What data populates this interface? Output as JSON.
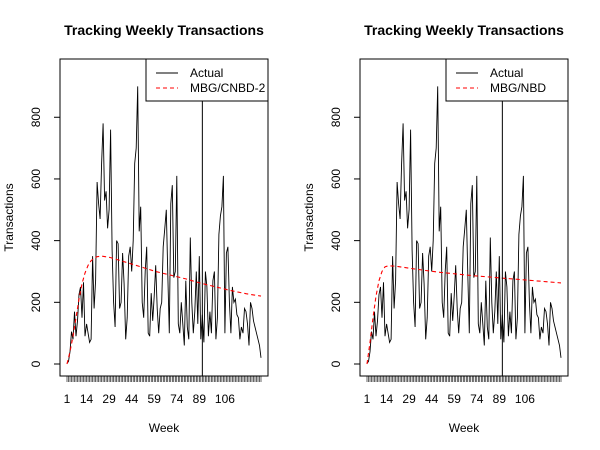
{
  "chart_data": [
    {
      "type": "line",
      "title": "Tracking Weekly Transactions",
      "xlabel": "Week",
      "ylabel": "Transactions",
      "xlim": [
        1,
        130
      ],
      "ylim": [
        0,
        950
      ],
      "x_ticks": [
        1,
        14,
        29,
        44,
        59,
        74,
        89,
        106
      ],
      "y_ticks": [
        0,
        200,
        400,
        600,
        800
      ],
      "calibration_week": 91,
      "legend_position": "top-right",
      "grid": false,
      "series": [
        {
          "name": "Actual",
          "color": "#000000",
          "style": "solid",
          "x": [
            1,
            2,
            3,
            4,
            5,
            6,
            7,
            8,
            9,
            10,
            11,
            12,
            13,
            14,
            15,
            16,
            17,
            18,
            19,
            20,
            21,
            22,
            23,
            24,
            25,
            26,
            27,
            28,
            29,
            30,
            31,
            32,
            33,
            34,
            35,
            36,
            37,
            38,
            39,
            40,
            41,
            42,
            43,
            44,
            45,
            46,
            47,
            48,
            49,
            50,
            51,
            52,
            53,
            54,
            55,
            56,
            57,
            58,
            59,
            60,
            61,
            62,
            63,
            64,
            65,
            66,
            67,
            68,
            69,
            70,
            71,
            72,
            73,
            74,
            75,
            76,
            77,
            78,
            79,
            80,
            81,
            82,
            83,
            84,
            85,
            86,
            87,
            88,
            89,
            90,
            91,
            92,
            93,
            94,
            95,
            96,
            97,
            98,
            99,
            100,
            101,
            102,
            103,
            104,
            105,
            106,
            107,
            108,
            109,
            110,
            111,
            112,
            113,
            114,
            115,
            116,
            117,
            118,
            119,
            120,
            121,
            122,
            123,
            124,
            125,
            126,
            127,
            128,
            129,
            130
          ],
          "y": [
            2,
            8,
            40,
            105,
            80,
            170,
            90,
            140,
            225,
            250,
            150,
            265,
            90,
            130,
            100,
            70,
            80,
            350,
            180,
            270,
            590,
            520,
            470,
            650,
            780,
            530,
            560,
            440,
            500,
            760,
            370,
            200,
            120,
            400,
            390,
            180,
            200,
            360,
            260,
            80,
            150,
            350,
            380,
            300,
            400,
            650,
            700,
            900,
            430,
            510,
            200,
            150,
            300,
            380,
            100,
            90,
            230,
            140,
            220,
            320,
            180,
            100,
            180,
            200,
            380,
            440,
            500,
            290,
            100,
            520,
            580,
            280,
            300,
            610,
            130,
            100,
            200,
            130,
            60,
            270,
            120,
            80,
            410,
            200,
            100,
            170,
            300,
            130,
            350,
            80,
            160,
            70,
            300,
            250,
            90,
            170,
            100,
            270,
            300,
            80,
            150,
            420,
            480,
            510,
            610,
            100,
            360,
            380,
            200,
            100,
            250,
            200,
            210,
            160,
            150,
            80,
            120,
            100,
            180,
            170,
            130,
            60,
            200,
            180,
            140,
            120,
            100,
            80,
            60,
            20
          ]
        },
        {
          "name": "MBG/CNBD-2",
          "color": "#ff0000",
          "style": "dashed",
          "x": [
            1,
            3,
            5,
            7,
            9,
            11,
            13,
            15,
            17,
            19,
            21,
            24,
            30,
            40,
            50,
            60,
            70,
            80,
            90,
            100,
            110,
            120,
            130
          ],
          "y": [
            0,
            40,
            90,
            150,
            210,
            260,
            295,
            320,
            335,
            343,
            348,
            350,
            345,
            330,
            315,
            300,
            288,
            276,
            262,
            250,
            238,
            228,
            220
          ]
        }
      ]
    },
    {
      "type": "line",
      "title": "Tracking Weekly Transactions",
      "xlabel": "Week",
      "ylabel": "Transactions",
      "xlim": [
        1,
        130
      ],
      "ylim": [
        0,
        950
      ],
      "x_ticks": [
        1,
        14,
        29,
        44,
        59,
        74,
        89,
        106
      ],
      "y_ticks": [
        0,
        200,
        400,
        600,
        800
      ],
      "calibration_week": 91,
      "legend_position": "top-right",
      "grid": false,
      "series": [
        {
          "name": "Actual",
          "color": "#000000",
          "style": "solid",
          "x": [
            1,
            2,
            3,
            4,
            5,
            6,
            7,
            8,
            9,
            10,
            11,
            12,
            13,
            14,
            15,
            16,
            17,
            18,
            19,
            20,
            21,
            22,
            23,
            24,
            25,
            26,
            27,
            28,
            29,
            30,
            31,
            32,
            33,
            34,
            35,
            36,
            37,
            38,
            39,
            40,
            41,
            42,
            43,
            44,
            45,
            46,
            47,
            48,
            49,
            50,
            51,
            52,
            53,
            54,
            55,
            56,
            57,
            58,
            59,
            60,
            61,
            62,
            63,
            64,
            65,
            66,
            67,
            68,
            69,
            70,
            71,
            72,
            73,
            74,
            75,
            76,
            77,
            78,
            79,
            80,
            81,
            82,
            83,
            84,
            85,
            86,
            87,
            88,
            89,
            90,
            91,
            92,
            93,
            94,
            95,
            96,
            97,
            98,
            99,
            100,
            101,
            102,
            103,
            104,
            105,
            106,
            107,
            108,
            109,
            110,
            111,
            112,
            113,
            114,
            115,
            116,
            117,
            118,
            119,
            120,
            121,
            122,
            123,
            124,
            125,
            126,
            127,
            128,
            129,
            130
          ],
          "y": [
            2,
            8,
            40,
            105,
            80,
            170,
            90,
            140,
            225,
            250,
            150,
            265,
            90,
            130,
            100,
            70,
            80,
            350,
            180,
            270,
            590,
            520,
            470,
            650,
            780,
            530,
            560,
            440,
            500,
            760,
            370,
            200,
            120,
            400,
            390,
            180,
            200,
            360,
            260,
            80,
            150,
            350,
            380,
            300,
            400,
            650,
            700,
            900,
            430,
            510,
            200,
            150,
            300,
            380,
            100,
            90,
            230,
            140,
            220,
            320,
            180,
            100,
            180,
            200,
            380,
            440,
            500,
            290,
            100,
            520,
            580,
            280,
            300,
            610,
            130,
            100,
            200,
            130,
            60,
            270,
            120,
            80,
            410,
            200,
            100,
            170,
            300,
            130,
            350,
            80,
            160,
            70,
            300,
            250,
            90,
            170,
            100,
            270,
            300,
            80,
            150,
            420,
            480,
            510,
            610,
            100,
            360,
            380,
            200,
            100,
            250,
            200,
            210,
            160,
            150,
            80,
            120,
            100,
            180,
            170,
            130,
            60,
            200,
            180,
            140,
            120,
            100,
            80,
            60,
            20
          ]
        },
        {
          "name": "MBG/NBD",
          "color": "#ff0000",
          "style": "dashed",
          "x": [
            1,
            3,
            5,
            7,
            9,
            11,
            13,
            15,
            17,
            20,
            30,
            40,
            50,
            60,
            70,
            80,
            90,
            100,
            110,
            120,
            130
          ],
          "y": [
            0,
            70,
            150,
            220,
            270,
            300,
            315,
            318,
            318,
            317,
            310,
            303,
            297,
            292,
            287,
            283,
            279,
            275,
            271,
            267,
            263
          ]
        }
      ]
    }
  ]
}
